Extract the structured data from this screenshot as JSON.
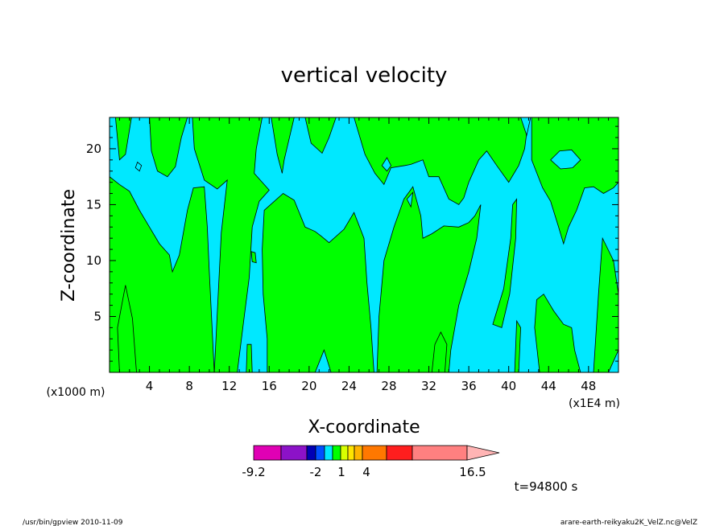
{
  "chart_data": {
    "type": "heatmap",
    "title": "vertical velocity",
    "xlabel": "X-coordinate",
    "ylabel": "Z-coordinate",
    "x_unit_left": "(x1000 m)",
    "x_unit_right": "(x1E4 m)",
    "xlim": [
      0,
      51
    ],
    "ylim": [
      0,
      22.8
    ],
    "x_ticks": [
      4,
      8,
      12,
      16,
      20,
      24,
      28,
      32,
      36,
      40,
      44,
      48
    ],
    "y_ticks": [
      5,
      10,
      15,
      20
    ],
    "x_tick_labels": [
      "4",
      "8",
      "12",
      "16",
      "20",
      "24",
      "28",
      "32",
      "36",
      "40",
      "44",
      "48"
    ],
    "y_tick_labels": [
      "5",
      "10",
      "15",
      "20"
    ],
    "field_colors": {
      "negative": "#00e8ff",
      "positive": "#00ff00"
    },
    "positive_regions": [
      [
        [
          0,
          17.5
        ],
        [
          1,
          16.8
        ],
        [
          2,
          16.2
        ],
        [
          3,
          14.5
        ],
        [
          4,
          13
        ],
        [
          5,
          11.5
        ],
        [
          6,
          10.5
        ],
        [
          6.3,
          9
        ],
        [
          7,
          10.5
        ],
        [
          7.8,
          14.5
        ],
        [
          8.4,
          16.5
        ],
        [
          9.5,
          16.6
        ],
        [
          9.8,
          13
        ],
        [
          10,
          9
        ],
        [
          10.5,
          0
        ],
        [
          1,
          0
        ],
        [
          0.8,
          4
        ],
        [
          1.6,
          7.8
        ],
        [
          2.3,
          4.8
        ],
        [
          2.7,
          0
        ],
        [
          0,
          0
        ]
      ],
      [
        [
          0.6,
          22.8
        ],
        [
          1,
          19
        ],
        [
          1.6,
          19.5
        ],
        [
          2.2,
          22.8
        ]
      ],
      [
        [
          4,
          22.8
        ],
        [
          4.2,
          19.8
        ],
        [
          4.8,
          18
        ],
        [
          5.8,
          17.5
        ],
        [
          6.6,
          18.4
        ],
        [
          7.2,
          21
        ],
        [
          7.8,
          22.8
        ]
      ],
      [
        [
          8.3,
          22.8
        ],
        [
          8.5,
          20
        ],
        [
          9.5,
          17.2
        ],
        [
          10.8,
          16.4
        ],
        [
          11.8,
          17.2
        ],
        [
          11.2,
          12.5
        ],
        [
          10.5,
          0
        ],
        [
          12.8,
          0
        ],
        [
          13.5,
          5
        ],
        [
          14,
          8.5
        ],
        [
          14.3,
          13
        ],
        [
          15,
          15.3
        ],
        [
          16,
          16.3
        ],
        [
          14.5,
          17.8
        ],
        [
          14.7,
          20
        ],
        [
          15.3,
          22.8
        ]
      ],
      [
        [
          15.5,
          14.5
        ],
        [
          17.4,
          16
        ],
        [
          18.5,
          15.4
        ],
        [
          19.6,
          13
        ],
        [
          20.6,
          12.6
        ],
        [
          21.2,
          12.2
        ],
        [
          22,
          11.6
        ],
        [
          23.5,
          12.8
        ],
        [
          24.5,
          14.3
        ],
        [
          25.5,
          12
        ],
        [
          25.8,
          8
        ],
        [
          26.2,
          4
        ],
        [
          26.5,
          0
        ],
        [
          22.2,
          0
        ],
        [
          21.5,
          2
        ],
        [
          20.6,
          0
        ],
        [
          15.8,
          0
        ],
        [
          15.8,
          3
        ],
        [
          15.4,
          7
        ],
        [
          15.3,
          11
        ]
      ],
      [
        [
          14.2,
          10.8
        ],
        [
          14.6,
          10.7
        ],
        [
          14.7,
          9.8
        ],
        [
          14.3,
          9.9
        ]
      ],
      [
        [
          13.8,
          2.5
        ],
        [
          14.2,
          2.5
        ],
        [
          14.3,
          0
        ],
        [
          13.7,
          0
        ]
      ],
      [
        [
          16.2,
          22.8
        ],
        [
          16.8,
          19.5
        ],
        [
          17.3,
          17.8
        ],
        [
          17.5,
          19
        ],
        [
          18.5,
          22.8
        ]
      ],
      [
        [
          19.6,
          22.8
        ],
        [
          20.2,
          20.5
        ],
        [
          21.3,
          19.6
        ],
        [
          22,
          21
        ],
        [
          22.7,
          22.8
        ]
      ],
      [
        [
          24.5,
          22.8
        ],
        [
          25.6,
          19.5
        ],
        [
          26.6,
          17.8
        ],
        [
          27.5,
          16.8
        ],
        [
          28.2,
          18.3
        ],
        [
          29.6,
          18.5
        ],
        [
          30.2,
          18.6
        ],
        [
          31.4,
          19
        ],
        [
          32,
          17.5
        ],
        [
          33,
          17.5
        ],
        [
          34,
          15.5
        ],
        [
          35,
          15
        ],
        [
          35.5,
          15.6
        ],
        [
          36,
          17
        ],
        [
          37,
          19
        ],
        [
          37.8,
          19.8
        ],
        [
          38.8,
          18.5
        ],
        [
          40,
          17
        ],
        [
          41,
          18.5
        ],
        [
          41.6,
          20
        ],
        [
          42,
          22.8
        ]
      ],
      [
        [
          26.8,
          0
        ],
        [
          27,
          5
        ],
        [
          27.5,
          10
        ],
        [
          28.5,
          13
        ],
        [
          29.5,
          15.5
        ],
        [
          30.4,
          16.6
        ],
        [
          31.2,
          14
        ],
        [
          31.4,
          12
        ],
        [
          32.3,
          12.4
        ],
        [
          33.5,
          13.1
        ],
        [
          35,
          13
        ],
        [
          36,
          13.4
        ],
        [
          36.6,
          14
        ],
        [
          37.2,
          15
        ],
        [
          36.8,
          12
        ],
        [
          36,
          9
        ],
        [
          35,
          6
        ],
        [
          34.2,
          2
        ],
        [
          34,
          0
        ]
      ],
      [
        [
          32.3,
          0
        ],
        [
          32.6,
          2.5
        ],
        [
          33.2,
          3.6
        ],
        [
          33.8,
          2.5
        ],
        [
          33.6,
          0
        ]
      ],
      [
        [
          38.4,
          4.3
        ],
        [
          39.5,
          7.5
        ],
        [
          40.2,
          12
        ],
        [
          40.4,
          15
        ],
        [
          40.8,
          15.5
        ],
        [
          40.7,
          12
        ],
        [
          40.1,
          7
        ],
        [
          39.3,
          4
        ]
      ],
      [
        [
          40.6,
          0
        ],
        [
          40.8,
          4.6
        ],
        [
          41.2,
          4
        ],
        [
          41,
          0
        ]
      ],
      [
        [
          43.1,
          0
        ],
        [
          42.6,
          4
        ],
        [
          42.8,
          6.5
        ],
        [
          43.5,
          7
        ],
        [
          44.5,
          5.5
        ],
        [
          45.5,
          4.3
        ],
        [
          46.3,
          4
        ],
        [
          46.6,
          2
        ],
        [
          47.2,
          0
        ]
      ],
      [
        [
          42.3,
          22.8
        ],
        [
          42.3,
          19
        ],
        [
          43.4,
          16.5
        ],
        [
          44.2,
          15.3
        ],
        [
          45,
          13
        ],
        [
          45.5,
          11.5
        ],
        [
          46,
          13
        ],
        [
          46.8,
          14.5
        ],
        [
          47.6,
          16.5
        ],
        [
          48.5,
          16.6
        ],
        [
          49.5,
          16
        ],
        [
          50.5,
          16.5
        ],
        [
          51,
          17
        ],
        [
          51,
          22.8
        ]
      ],
      [
        [
          48.5,
          0
        ],
        [
          49,
          7
        ],
        [
          49.4,
          12
        ],
        [
          50.5,
          10
        ],
        [
          51,
          7
        ],
        [
          51,
          2
        ],
        [
          50,
          0
        ]
      ]
    ],
    "negative_regions": [
      [
        [
          44.2,
          19
        ],
        [
          45.2,
          18.2
        ],
        [
          46.4,
          18.3
        ],
        [
          47.2,
          19
        ],
        [
          46.3,
          19.9
        ],
        [
          45.1,
          19.8
        ]
      ],
      [
        [
          27.3,
          18.5
        ],
        [
          27.8,
          18
        ],
        [
          28.2,
          18.5
        ],
        [
          27.8,
          19.2
        ]
      ],
      [
        [
          29.8,
          15.5
        ],
        [
          30.4,
          16.1
        ],
        [
          30.2,
          14.8
        ]
      ],
      [
        [
          2.6,
          18.3
        ],
        [
          3,
          18
        ],
        [
          3.2,
          18.5
        ],
        [
          2.8,
          18.8
        ]
      ],
      [
        [
          41.2,
          22.8
        ],
        [
          41.8,
          21.2
        ],
        [
          42.2,
          22.8
        ]
      ]
    ],
    "colorbar": {
      "colors": [
        "#e000b4",
        "#8c12c8",
        "#0000b4",
        "#0050ff",
        "#00e8ff",
        "#00ff00",
        "#d8ff00",
        "#ffe400",
        "#ffb400",
        "#ff7800",
        "#ff1e1e",
        "#ff8080"
      ],
      "extend_color": "#ffb4b4",
      "labels": [
        "-9.2",
        "-2",
        "1",
        "4",
        "16.5"
      ]
    },
    "time_label": "t=94800 s"
  },
  "footer": {
    "left": "/usr/bin/gpview   2010-11-09",
    "right": "arare-earth-reikyaku2K_VelZ.nc@VelZ"
  }
}
